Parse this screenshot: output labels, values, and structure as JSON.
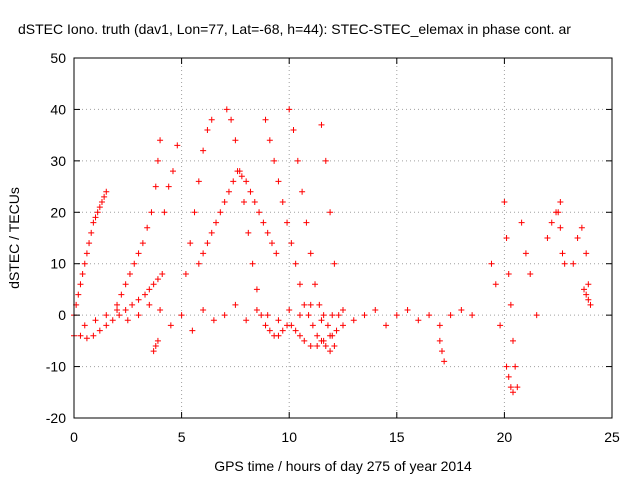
{
  "chart_data": {
    "type": "scatter",
    "title": "dSTEC Iono. truth (dav1, Lon=77, Lat=-68, h=44): STEC-STEC_elemax in phase cont. ar",
    "xlabel": "GPS time / hours of day 275 of year 2014",
    "ylabel": "dSTEC  / TECUs",
    "xlim": [
      0,
      25
    ],
    "ylim": [
      -20,
      50
    ],
    "xticks": [
      0,
      5,
      10,
      15,
      20,
      25
    ],
    "yticks": [
      -20,
      -10,
      0,
      10,
      20,
      30,
      40,
      50
    ],
    "grid": true,
    "marker": "+",
    "color": "#ff0000",
    "series": [
      {
        "x": [
          0.0,
          0.1,
          0.2,
          0.3,
          0.4,
          0.5,
          0.6,
          0.7,
          0.8,
          0.9,
          1.0,
          1.1,
          1.2,
          1.3,
          1.4,
          1.5,
          0.0,
          0.3,
          0.6,
          0.9,
          1.2,
          1.5,
          1.8,
          2.1,
          2.4,
          2.7,
          3.0,
          3.3,
          3.5,
          3.7,
          3.9,
          4.1,
          0.5,
          1.0,
          1.5,
          2.0,
          2.5,
          3.0,
          3.5,
          4.0,
          4.5,
          5.0,
          5.5,
          6.0,
          6.5,
          7.0,
          7.5,
          8.0,
          8.5,
          9.0,
          9.5,
          10.0,
          10.5,
          11.0,
          11.5,
          12.0,
          12.5,
          13.0,
          13.5,
          14.0,
          14.5,
          15.0,
          15.5,
          16.0,
          16.5,
          17.0,
          17.5,
          18.0,
          18.5,
          2.0,
          2.2,
          2.4,
          2.6,
          2.8,
          3.0,
          3.2,
          3.4,
          3.6,
          3.8,
          3.9,
          4.0,
          3.7,
          3.8,
          3.9,
          4.2,
          4.4,
          4.6,
          4.8,
          5.2,
          5.4,
          5.6,
          5.8,
          6.0,
          6.2,
          6.4,
          5.8,
          6.0,
          6.2,
          6.4,
          6.6,
          6.8,
          7.0,
          7.2,
          7.4,
          7.6,
          7.8,
          8.0,
          8.2,
          8.4,
          8.6,
          8.8,
          9.0,
          9.2,
          9.4,
          7.1,
          7.3,
          7.5,
          7.7,
          7.9,
          8.1,
          8.3,
          8.5,
          8.7,
          8.9,
          9.1,
          9.3,
          9.5,
          9.7,
          9.9,
          10.1,
          10.3,
          10.5,
          10.7,
          11.0,
          11.3,
          11.6,
          11.9,
          12.2,
          12.5,
          8.9,
          9.1,
          9.3,
          9.5,
          9.7,
          9.9,
          10.1,
          10.3,
          10.5,
          10.7,
          10.9,
          11.1,
          11.3,
          11.5,
          11.7,
          11.9,
          12.1,
          10.0,
          10.2,
          10.4,
          10.6,
          10.8,
          11.0,
          11.2,
          11.4,
          11.6,
          11.8,
          12.0,
          11.5,
          11.7,
          11.9,
          12.1,
          12.3,
          17.0,
          17.1,
          17.2,
          19.4,
          19.6,
          19.8,
          20.0,
          20.1,
          20.2,
          20.3,
          20.4,
          20.5,
          20.6,
          20.8,
          21.0,
          21.2,
          21.5,
          20.1,
          20.2,
          20.3,
          20.4,
          22.0,
          22.2,
          22.4,
          22.6,
          22.8,
          22.5,
          22.6,
          22.7,
          23.2,
          23.4,
          23.6,
          23.8,
          23.9,
          24.0,
          23.7,
          23.8,
          23.9
        ],
        "y": [
          0,
          2,
          4,
          6,
          8,
          10,
          12,
          14,
          16,
          18,
          19,
          20,
          21,
          22,
          23,
          24,
          -4,
          -4,
          -4.5,
          -4,
          -3,
          -2,
          -1,
          0,
          1,
          2,
          3,
          4,
          5,
          6,
          7,
          8,
          -2,
          -1,
          0,
          1,
          -1,
          0,
          2,
          1,
          -2,
          0,
          -3,
          1,
          -1,
          0,
          2,
          -1,
          1,
          0,
          -1,
          1,
          0,
          2,
          -1,
          0,
          1,
          -1,
          0,
          1,
          -2,
          0,
          1,
          -1,
          0,
          -2,
          0,
          1,
          0,
          2,
          4,
          6,
          8,
          10,
          12,
          14,
          17,
          20,
          25,
          30,
          34,
          -7,
          -6,
          -5,
          20,
          25,
          28,
          33,
          8,
          14,
          20,
          26,
          32,
          36,
          38,
          10,
          12,
          14,
          16,
          18,
          20,
          22,
          24,
          26,
          28,
          27,
          26,
          24,
          22,
          20,
          18,
          16,
          14,
          12,
          40,
          38,
          34,
          28,
          22,
          16,
          10,
          5,
          0,
          -2,
          -3,
          -4,
          -4,
          -3,
          -2,
          -2,
          -3,
          -4,
          -5,
          -6,
          -6,
          -5,
          -4,
          -3,
          -2,
          38,
          34,
          30,
          26,
          22,
          18,
          14,
          10,
          6,
          2,
          0,
          -2,
          -4,
          -5,
          -6,
          -7,
          -6,
          40,
          36,
          30,
          24,
          18,
          12,
          6,
          2,
          0,
          -2,
          -4,
          37,
          30,
          20,
          10,
          0,
          -5,
          -7,
          -9,
          10,
          6,
          -2,
          22,
          15,
          8,
          2,
          -5,
          -10,
          -14,
          18,
          12,
          8,
          0,
          -10,
          -12,
          -14,
          -15,
          15,
          18,
          20,
          22,
          10,
          20,
          17,
          12,
          10,
          15,
          17,
          12,
          6,
          2,
          5,
          4,
          3
        ]
      }
    ]
  }
}
